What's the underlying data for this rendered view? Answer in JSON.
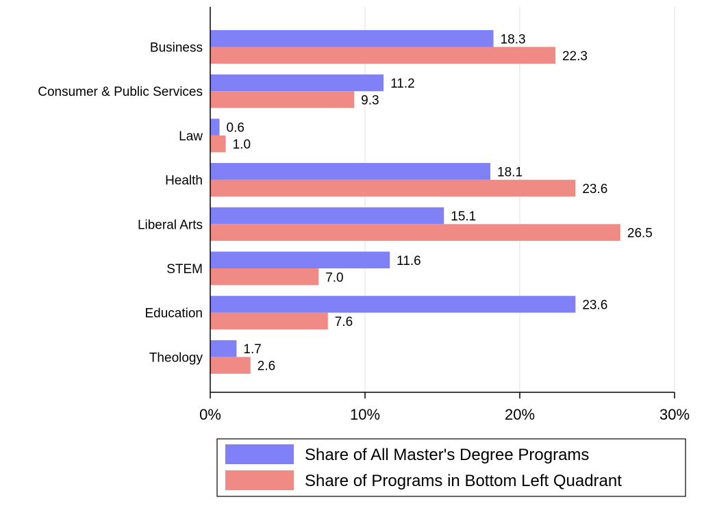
{
  "chart_data": {
    "type": "bar",
    "orientation": "horizontal",
    "categories": [
      "Business",
      "Consumer & Public Services",
      "Law",
      "Health",
      "Liberal Arts",
      "STEM",
      "Education",
      "Theology"
    ],
    "series": [
      {
        "name": "Share of All Master's Degree Programs",
        "color": "#8080f7",
        "values": [
          18.3,
          11.2,
          0.6,
          18.1,
          15.1,
          11.6,
          23.6,
          1.7
        ],
        "labels": [
          "18.3",
          "11.2",
          "0.6",
          "18.1",
          "15.1",
          "11.6",
          "23.6",
          "1.7"
        ]
      },
      {
        "name": "Share of Programs in Bottom Left Quadrant",
        "color": "#f08a85",
        "values": [
          22.3,
          9.3,
          1.0,
          23.6,
          26.5,
          7.0,
          7.6,
          2.6
        ],
        "labels": [
          "22.3",
          "9.3",
          "1.0",
          "23.6",
          "26.5",
          "7.0",
          "7.6",
          "2.6"
        ]
      }
    ],
    "xlim": [
      0,
      30
    ],
    "xticks": [
      0,
      10,
      20,
      30
    ],
    "xtick_labels": [
      "0%",
      "10%",
      "20%",
      "30%"
    ],
    "grid": true,
    "legend_position": "bottom"
  }
}
